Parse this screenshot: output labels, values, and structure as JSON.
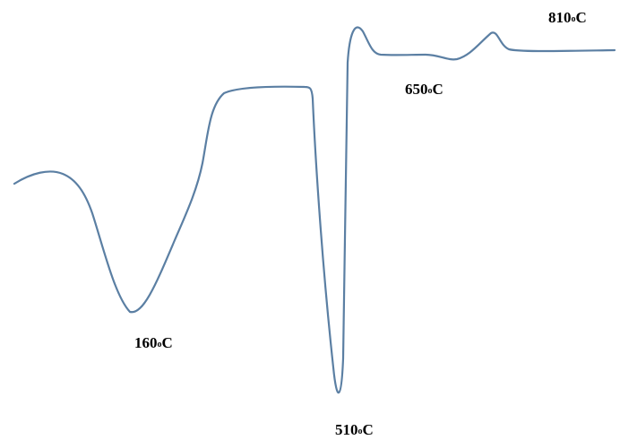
{
  "chart_data": {
    "type": "line",
    "title": "",
    "xlabel": "",
    "ylabel": "",
    "grid": false,
    "legend": "none",
    "line_color": "#5b7fa3",
    "annotations": [
      {
        "value": "160",
        "unit": "C",
        "degree": "o"
      },
      {
        "value": "510",
        "unit": "C",
        "degree": "o"
      },
      {
        "value": "650",
        "unit": "C",
        "degree": "o"
      },
      {
        "value": "810",
        "unit": "C",
        "degree": "o"
      }
    ]
  }
}
